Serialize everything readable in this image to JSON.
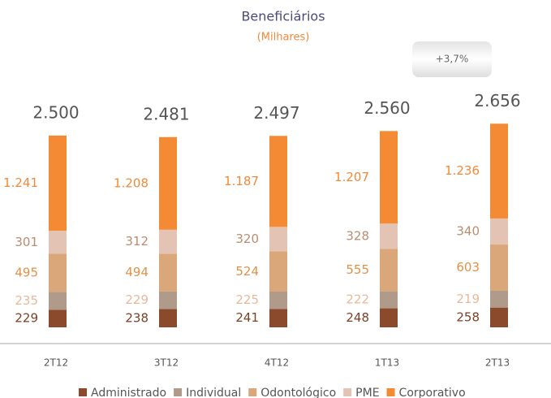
{
  "chart_data": {
    "type": "stacked_bar",
    "title": "Beneficiários",
    "subtitle": "(Milhares)",
    "annotation": "+3,7%",
    "categories": [
      "2T12",
      "3T12",
      "4T12",
      "1T13",
      "2T13"
    ],
    "series": [
      {
        "name": "Administrado",
        "color": "#8b4a2b",
        "label_color": "#7a4126",
        "values": [
          229,
          238,
          241,
          248,
          258
        ]
      },
      {
        "name": "Individual",
        "color": "#b09a8a",
        "label_color": "#e6b99c",
        "values": [
          235,
          229,
          225,
          222,
          219
        ]
      },
      {
        "name": "Odontológico",
        "color": "#d9a77a",
        "label_color": "#e0924a",
        "values": [
          495,
          494,
          524,
          555,
          603
        ]
      },
      {
        "name": "PME",
        "color": "#e3c3b3",
        "label_color": "#b98d72",
        "values": [
          301,
          312,
          320,
          328,
          340
        ]
      },
      {
        "name": "Corporativo",
        "color": "#f58a35",
        "label_color": "#f08a3a",
        "values": [
          1241,
          1208,
          1187,
          1207,
          1236
        ],
        "value_labels": [
          "1.241",
          "1.208",
          "1.187",
          "1.207",
          "1.236"
        ]
      }
    ],
    "totals": {
      "values": [
        2500,
        2481,
        2497,
        2560,
        2656
      ],
      "value_labels": [
        "2.500",
        "2.481",
        "2.497",
        "2.560",
        "2.656"
      ]
    }
  }
}
